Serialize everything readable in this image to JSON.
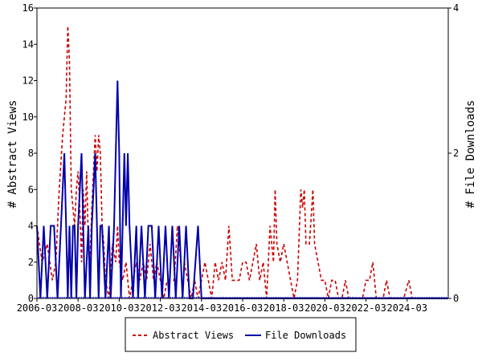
{
  "chart_data": {
    "type": "line",
    "ylabel_left": "# Abstract Views",
    "ylabel_right": "# File Downloads",
    "ylim_left": [
      0,
      16
    ],
    "ylim_right": [
      0,
      4
    ],
    "yticks_left": [
      0,
      2,
      4,
      6,
      8,
      10,
      12,
      14,
      16
    ],
    "yticks_right": [
      0,
      2,
      4
    ],
    "xlim": [
      "2006-03",
      "2026-03"
    ],
    "xticks": [
      "2006-03",
      "2008-03",
      "2010-03",
      "2012-03",
      "2014-03",
      "2016-03",
      "2018-03",
      "2020-03",
      "2022-03",
      "2024-03"
    ],
    "grid": false,
    "legend_position": "bottom",
    "series": [
      {
        "name": "Abstract Views",
        "axis": "left",
        "color": "#cc0000",
        "style": "dashed",
        "points": [
          [
            "2006-03",
            4
          ],
          [
            "2006-06",
            2
          ],
          [
            "2006-09",
            3
          ],
          [
            "2006-12",
            1
          ],
          [
            "2007-02",
            2
          ],
          [
            "2007-04",
            6
          ],
          [
            "2007-06",
            9
          ],
          [
            "2007-08",
            11
          ],
          [
            "2007-09",
            15
          ],
          [
            "2007-10",
            13
          ],
          [
            "2007-11",
            6
          ],
          [
            "2007-12",
            5
          ],
          [
            "2008-01",
            4
          ],
          [
            "2008-02",
            6
          ],
          [
            "2008-03",
            7
          ],
          [
            "2008-04",
            5
          ],
          [
            "2008-05",
            2
          ],
          [
            "2008-06",
            6
          ],
          [
            "2008-07",
            4
          ],
          [
            "2008-08",
            7
          ],
          [
            "2008-09",
            3
          ],
          [
            "2008-10",
            2
          ],
          [
            "2008-11",
            5
          ],
          [
            "2009-01",
            9
          ],
          [
            "2009-02",
            7
          ],
          [
            "2009-03",
            9
          ],
          [
            "2009-04",
            8
          ],
          [
            "2009-05",
            4
          ],
          [
            "2009-06",
            3
          ],
          [
            "2009-07",
            1
          ],
          [
            "2009-09",
            0
          ],
          [
            "2009-11",
            3
          ],
          [
            "2010-01",
            2
          ],
          [
            "2010-02",
            4
          ],
          [
            "2010-03",
            2
          ],
          [
            "2010-05",
            1
          ],
          [
            "2010-07",
            2
          ],
          [
            "2010-09",
            0
          ],
          [
            "2010-11",
            1
          ],
          [
            "2011-01",
            2
          ],
          [
            "2011-03",
            1
          ],
          [
            "2011-05",
            2
          ],
          [
            "2011-07",
            1
          ],
          [
            "2011-09",
            3
          ],
          [
            "2011-11",
            1
          ],
          [
            "2012-01",
            2
          ],
          [
            "2012-03",
            1
          ],
          [
            "2012-05",
            0
          ],
          [
            "2012-07",
            1
          ],
          [
            "2012-09",
            1
          ],
          [
            "2012-11",
            1
          ],
          [
            "2013-01",
            4
          ],
          [
            "2013-03",
            2
          ],
          [
            "2013-05",
            2
          ],
          [
            "2013-07",
            1
          ],
          [
            "2013-09",
            0
          ],
          [
            "2013-11",
            1
          ],
          [
            "2014-01",
            0
          ],
          [
            "2014-03",
            1
          ],
          [
            "2014-05",
            2
          ],
          [
            "2014-07",
            1
          ],
          [
            "2014-09",
            0
          ],
          [
            "2014-11",
            2
          ],
          [
            "2015-01",
            1
          ],
          [
            "2015-03",
            2
          ],
          [
            "2015-05",
            1
          ],
          [
            "2015-07",
            4
          ],
          [
            "2015-09",
            1
          ],
          [
            "2015-11",
            1
          ],
          [
            "2016-01",
            1
          ],
          [
            "2016-03",
            2
          ],
          [
            "2016-05",
            2
          ],
          [
            "2016-07",
            1
          ],
          [
            "2016-09",
            2
          ],
          [
            "2016-11",
            3
          ],
          [
            "2017-01",
            1
          ],
          [
            "2017-03",
            2
          ],
          [
            "2017-05",
            0
          ],
          [
            "2017-07",
            4
          ],
          [
            "2017-09",
            2
          ],
          [
            "2017-10",
            6
          ],
          [
            "2017-11",
            3
          ],
          [
            "2018-01",
            2
          ],
          [
            "2018-03",
            3
          ],
          [
            "2018-05",
            2
          ],
          [
            "2018-07",
            1
          ],
          [
            "2018-09",
            0
          ],
          [
            "2018-11",
            1
          ],
          [
            "2019-01",
            6
          ],
          [
            "2019-02",
            5
          ],
          [
            "2019-03",
            6
          ],
          [
            "2019-04",
            3
          ],
          [
            "2019-06",
            3
          ],
          [
            "2019-08",
            6
          ],
          [
            "2019-09",
            3
          ],
          [
            "2019-11",
            2
          ],
          [
            "2020-01",
            1
          ],
          [
            "2020-03",
            1
          ],
          [
            "2020-05",
            0
          ],
          [
            "2020-07",
            1
          ],
          [
            "2020-09",
            1
          ],
          [
            "2020-11",
            0
          ],
          [
            "2021-01",
            0
          ],
          [
            "2021-03",
            1
          ],
          [
            "2021-05",
            0
          ],
          [
            "2021-07",
            0
          ],
          [
            "2022-01",
            0
          ],
          [
            "2022-03",
            1
          ],
          [
            "2022-05",
            1
          ],
          [
            "2022-07",
            2
          ],
          [
            "2022-09",
            0
          ],
          [
            "2023-01",
            0
          ],
          [
            "2023-03",
            1
          ],
          [
            "2023-05",
            0
          ],
          [
            "2024-01",
            0
          ],
          [
            "2024-04",
            1
          ],
          [
            "2024-06",
            0
          ],
          [
            "2026-03",
            0
          ]
        ]
      },
      {
        "name": "File Downloads",
        "axis": "right",
        "color": "#0000aa",
        "style": "solid",
        "points": [
          [
            "2006-03",
            1
          ],
          [
            "2006-05",
            0
          ],
          [
            "2006-07",
            1
          ],
          [
            "2006-09",
            0
          ],
          [
            "2006-11",
            1
          ],
          [
            "2007-01",
            1
          ],
          [
            "2007-03",
            0
          ],
          [
            "2007-05",
            1
          ],
          [
            "2007-07",
            2
          ],
          [
            "2007-08",
            1
          ],
          [
            "2007-09",
            0
          ],
          [
            "2007-10",
            1
          ],
          [
            "2007-11",
            0
          ],
          [
            "2007-12",
            1
          ],
          [
            "2008-01",
            1
          ],
          [
            "2008-02",
            0
          ],
          [
            "2008-03",
            1
          ],
          [
            "2008-05",
            2
          ],
          [
            "2008-06",
            1
          ],
          [
            "2008-07",
            0
          ],
          [
            "2008-09",
            1
          ],
          [
            "2008-10",
            0
          ],
          [
            "2008-11",
            1
          ],
          [
            "2009-01",
            2
          ],
          [
            "2009-02",
            1
          ],
          [
            "2009-03",
            0
          ],
          [
            "2009-04",
            1
          ],
          [
            "2009-05",
            1
          ],
          [
            "2009-07",
            0
          ],
          [
            "2009-09",
            1
          ],
          [
            "2009-10",
            0
          ],
          [
            "2009-12",
            1
          ],
          [
            "2010-01",
            2
          ],
          [
            "2010-02",
            3
          ],
          [
            "2010-03",
            2
          ],
          [
            "2010-04",
            0
          ],
          [
            "2010-06",
            2
          ],
          [
            "2010-07",
            1
          ],
          [
            "2010-08",
            2
          ],
          [
            "2010-09",
            1
          ],
          [
            "2010-11",
            0
          ],
          [
            "2011-01",
            1
          ],
          [
            "2011-02",
            0
          ],
          [
            "2011-04",
            1
          ],
          [
            "2011-06",
            0
          ],
          [
            "2011-08",
            1
          ],
          [
            "2011-10",
            1
          ],
          [
            "2011-12",
            0
          ],
          [
            "2012-02",
            1
          ],
          [
            "2012-04",
            0
          ],
          [
            "2012-06",
            1
          ],
          [
            "2012-08",
            0
          ],
          [
            "2012-10",
            1
          ],
          [
            "2012-12",
            0
          ],
          [
            "2013-02",
            1
          ],
          [
            "2013-04",
            0
          ],
          [
            "2013-06",
            1
          ],
          [
            "2013-08",
            0
          ],
          [
            "2013-10",
            0
          ],
          [
            "2014-01",
            1
          ],
          [
            "2014-03",
            0
          ],
          [
            "2016-01",
            0
          ],
          [
            "2026-03",
            0
          ]
        ]
      }
    ]
  }
}
